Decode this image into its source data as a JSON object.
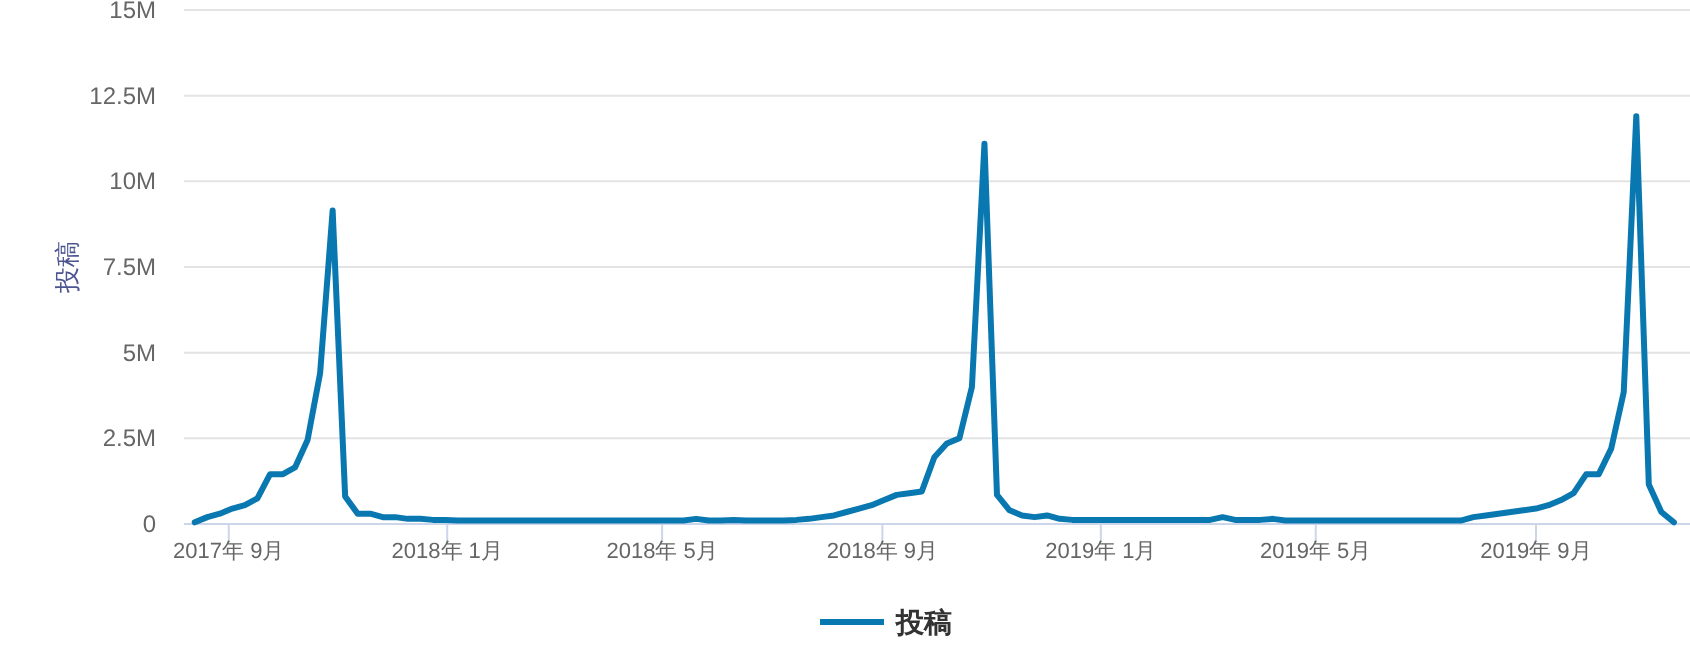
{
  "chart_data": {
    "type": "line",
    "ylabel": "投稿",
    "grid": "y",
    "legend": "bottom",
    "xlim": [
      "2017-08-07",
      "2019-11-26"
    ],
    "ylim": [
      0,
      15
    ],
    "yticks": [
      {
        "value": 0,
        "label": "0"
      },
      {
        "value": 2.5,
        "label": "2.5M"
      },
      {
        "value": 5,
        "label": "5M"
      },
      {
        "value": 7.5,
        "label": "7.5M"
      },
      {
        "value": 10,
        "label": "10M"
      },
      {
        "value": 12.5,
        "label": "12.5M"
      },
      {
        "value": 15,
        "label": "15M"
      }
    ],
    "xticks": [
      {
        "value": "2017-09-01",
        "label": "2017年 9月"
      },
      {
        "value": "2018-01-01",
        "label": "2018年 1月"
      },
      {
        "value": "2018-05-01",
        "label": "2018年 5月"
      },
      {
        "value": "2018-09-01",
        "label": "2018年 9月"
      },
      {
        "value": "2019-01-01",
        "label": "2019年 1月"
      },
      {
        "value": "2019-05-01",
        "label": "2019年 5月"
      },
      {
        "value": "2019-09-01",
        "label": "2019年 9月"
      }
    ],
    "x": [
      "2017-08-13",
      "2017-08-20",
      "2017-08-27",
      "2017-09-03",
      "2017-09-10",
      "2017-09-17",
      "2017-09-24",
      "2017-10-01",
      "2017-10-08",
      "2017-10-15",
      "2017-10-22",
      "2017-10-29",
      "2017-11-05",
      "2017-11-12",
      "2017-11-19",
      "2017-11-26",
      "2017-12-03",
      "2017-12-10",
      "2017-12-17",
      "2017-12-24",
      "2017-12-31",
      "2018-01-07",
      "2018-01-14",
      "2018-01-21",
      "2018-01-28",
      "2018-02-04",
      "2018-02-11",
      "2018-02-18",
      "2018-02-25",
      "2018-03-04",
      "2018-03-11",
      "2018-03-18",
      "2018-03-25",
      "2018-04-01",
      "2018-04-08",
      "2018-04-15",
      "2018-04-22",
      "2018-04-29",
      "2018-05-06",
      "2018-05-13",
      "2018-05-20",
      "2018-05-27",
      "2018-06-03",
      "2018-06-10",
      "2018-06-17",
      "2018-06-24",
      "2018-07-01",
      "2018-07-08",
      "2018-07-15",
      "2018-07-22",
      "2018-07-29",
      "2018-08-05",
      "2018-08-12",
      "2018-08-19",
      "2018-08-26",
      "2018-09-02",
      "2018-09-09",
      "2018-09-16",
      "2018-09-23",
      "2018-09-30",
      "2018-10-07",
      "2018-10-14",
      "2018-10-21",
      "2018-10-28",
      "2018-11-04",
      "2018-11-11",
      "2018-11-18",
      "2018-11-25",
      "2018-12-02",
      "2018-12-09",
      "2018-12-16",
      "2018-12-23",
      "2018-12-30",
      "2019-01-06",
      "2019-01-13",
      "2019-01-20",
      "2019-01-27",
      "2019-02-03",
      "2019-02-10",
      "2019-02-17",
      "2019-02-24",
      "2019-03-03",
      "2019-03-10",
      "2019-03-17",
      "2019-03-24",
      "2019-03-31",
      "2019-04-07",
      "2019-04-14",
      "2019-04-21",
      "2019-04-28",
      "2019-05-05",
      "2019-05-12",
      "2019-05-19",
      "2019-05-26",
      "2019-06-02",
      "2019-06-09",
      "2019-06-16",
      "2019-06-23",
      "2019-06-30",
      "2019-07-07",
      "2019-07-14",
      "2019-07-21",
      "2019-07-28",
      "2019-08-04",
      "2019-08-11",
      "2019-08-18",
      "2019-08-25",
      "2019-09-01",
      "2019-09-08",
      "2019-09-15",
      "2019-09-22",
      "2019-09-29",
      "2019-10-06",
      "2019-10-13",
      "2019-10-20",
      "2019-10-27",
      "2019-11-03",
      "2019-11-10",
      "2019-11-17"
    ],
    "series": [
      {
        "name": "投稿",
        "color": "#0a78b0",
        "values": [
          0.05,
          0.2,
          0.3,
          0.45,
          0.55,
          0.75,
          1.45,
          1.45,
          1.65,
          2.45,
          4.4,
          9.15,
          0.8,
          0.3,
          0.3,
          0.2,
          0.2,
          0.15,
          0.15,
          0.12,
          0.12,
          0.1,
          0.1,
          0.1,
          0.1,
          0.1,
          0.1,
          0.1,
          0.1,
          0.1,
          0.1,
          0.1,
          0.1,
          0.1,
          0.1,
          0.1,
          0.1,
          0.1,
          0.1,
          0.1,
          0.15,
          0.1,
          0.1,
          0.12,
          0.1,
          0.1,
          0.1,
          0.1,
          0.12,
          0.15,
          0.2,
          0.25,
          0.35,
          0.45,
          0.55,
          0.7,
          0.85,
          0.9,
          0.95,
          1.95,
          2.35,
          2.5,
          4.0,
          11.1,
          0.85,
          0.4,
          0.25,
          0.2,
          0.25,
          0.15,
          0.12,
          0.12,
          0.12,
          0.12,
          0.12,
          0.12,
          0.12,
          0.12,
          0.12,
          0.12,
          0.12,
          0.12,
          0.2,
          0.12,
          0.12,
          0.12,
          0.15,
          0.1,
          0.1,
          0.1,
          0.1,
          0.1,
          0.1,
          0.1,
          0.1,
          0.1,
          0.1,
          0.1,
          0.1,
          0.1,
          0.1,
          0.1,
          0.2,
          0.25,
          0.3,
          0.35,
          0.4,
          0.45,
          0.55,
          0.7,
          0.9,
          1.45,
          1.45,
          2.2,
          3.85,
          11.9,
          1.15,
          0.35,
          0.05
        ]
      }
    ]
  }
}
